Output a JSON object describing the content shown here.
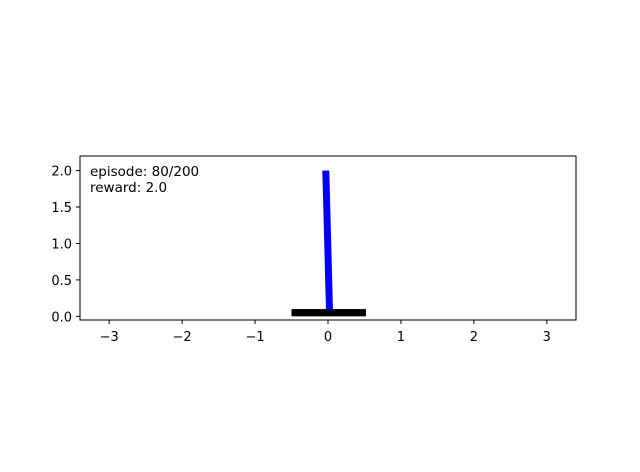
{
  "chart_data": {
    "type": "scatter",
    "title": "",
    "xlabel": "",
    "ylabel": "",
    "xlim": [
      -3.4,
      3.4
    ],
    "ylim": [
      -0.05,
      2.2
    ],
    "xticks": [
      -3,
      -2,
      -1,
      0,
      1,
      2,
      3
    ],
    "xtick_labels": [
      "−3",
      "−2",
      "−1",
      "0",
      "1",
      "2",
      "3"
    ],
    "yticks": [
      0.0,
      0.5,
      1.0,
      1.5,
      2.0
    ],
    "ytick_labels": [
      "0.0",
      "0.5",
      "1.0",
      "1.5",
      "2.0"
    ],
    "grid": false,
    "annotations": {
      "episode": "episode: 80/200",
      "reward": "reward: 2.0"
    },
    "cart": {
      "x_min": -0.5,
      "x_max": 0.52,
      "y_min": 0.0,
      "y_max": 0.1,
      "color": "#000000"
    },
    "pole": {
      "x_base": 0.02,
      "y_base": 0.1,
      "x_top": -0.03,
      "y_top": 2.0,
      "color": "#0000ff"
    }
  }
}
